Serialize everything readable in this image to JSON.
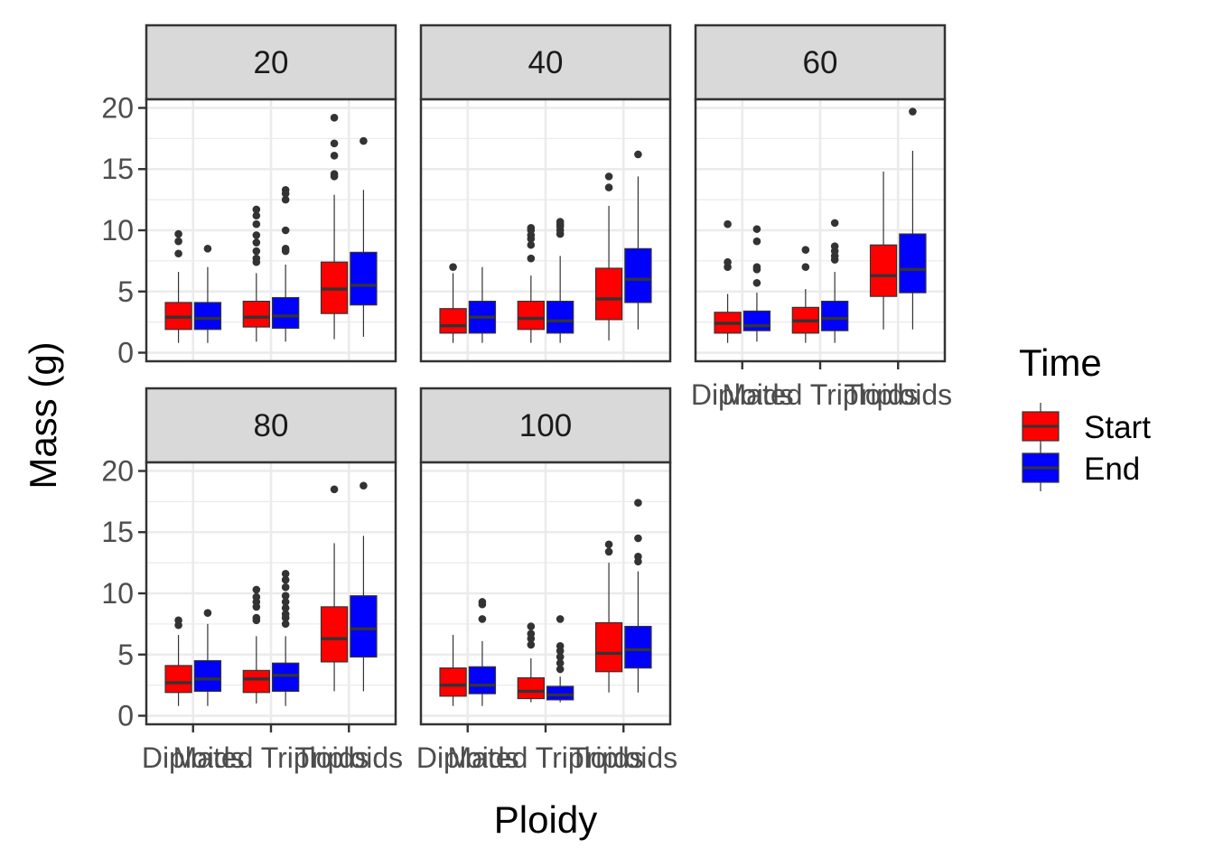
{
  "chart_data": {
    "type": "boxplot",
    "xlabel": "Ploidy",
    "ylabel": "Mass (g)",
    "ylim": [
      -0.7,
      20.7
    ],
    "yticks": [
      0,
      5,
      10,
      15,
      20
    ],
    "categories": [
      "Diploids",
      "Mated Triploids",
      "Triploids"
    ],
    "legend": {
      "title": "Time",
      "position": "right",
      "entries": [
        {
          "name": "Start",
          "color": "#ff0000"
        },
        {
          "name": "End",
          "color": "#0000ff"
        }
      ]
    },
    "panels": [
      {
        "label": "20",
        "boxes": [
          {
            "category": "Diploids",
            "series": "Start",
            "lower": 0.8,
            "q1": 1.9,
            "median": 2.9,
            "q3": 4.1,
            "upper": 6.6,
            "outliers": [
              8.1,
              9.1,
              9.7
            ]
          },
          {
            "category": "Diploids",
            "series": "End",
            "lower": 0.8,
            "q1": 1.9,
            "median": 2.8,
            "q3": 4.1,
            "upper": 7.0,
            "outliers": [
              8.5
            ]
          },
          {
            "category": "Mated Triploids",
            "series": "Start",
            "lower": 0.9,
            "q1": 2.1,
            "median": 2.9,
            "q3": 4.2,
            "upper": 6.5,
            "outliers": [
              7.4,
              7.7,
              8.3,
              9.0,
              9.6,
              10.5,
              11.2,
              11.7
            ]
          },
          {
            "category": "Mated Triploids",
            "series": "End",
            "lower": 0.9,
            "q1": 2.0,
            "median": 3.0,
            "q3": 4.5,
            "upper": 7.2,
            "outliers": [
              8.3,
              8.5,
              10.0,
              12.5,
              13.0,
              13.3
            ]
          },
          {
            "category": "Triploids",
            "series": "Start",
            "lower": 1.1,
            "q1": 3.2,
            "median": 5.2,
            "q3": 7.4,
            "upper": 12.9,
            "outliers": [
              14.4,
              14.6,
              16.1,
              17.1,
              19.2
            ]
          },
          {
            "category": "Triploids",
            "series": "End",
            "lower": 1.3,
            "q1": 3.9,
            "median": 5.5,
            "q3": 8.2,
            "upper": 13.3,
            "outliers": [
              17.3
            ]
          }
        ]
      },
      {
        "label": "40",
        "boxes": [
          {
            "category": "Diploids",
            "series": "Start",
            "lower": 0.8,
            "q1": 1.6,
            "median": 2.2,
            "q3": 3.6,
            "upper": 6.5,
            "outliers": [
              7.0
            ]
          },
          {
            "category": "Diploids",
            "series": "End",
            "lower": 0.8,
            "q1": 1.6,
            "median": 2.9,
            "q3": 4.2,
            "upper": 7.0,
            "outliers": []
          },
          {
            "category": "Mated Triploids",
            "series": "Start",
            "lower": 0.8,
            "q1": 1.9,
            "median": 2.8,
            "q3": 4.2,
            "upper": 6.3,
            "outliers": [
              7.7,
              8.8,
              9.3,
              9.6,
              10.0,
              10.2
            ]
          },
          {
            "category": "Mated Triploids",
            "series": "End",
            "lower": 0.8,
            "q1": 1.6,
            "median": 2.6,
            "q3": 4.2,
            "upper": 7.9,
            "outliers": [
              9.7,
              10.0,
              10.3,
              10.5,
              10.7
            ]
          },
          {
            "category": "Triploids",
            "series": "Start",
            "lower": 1.0,
            "q1": 2.7,
            "median": 4.4,
            "q3": 6.9,
            "upper": 12.0,
            "outliers": [
              13.5,
              14.4
            ]
          },
          {
            "category": "Triploids",
            "series": "End",
            "lower": 1.9,
            "q1": 4.1,
            "median": 6.0,
            "q3": 8.5,
            "upper": 14.4,
            "outliers": [
              16.2
            ]
          }
        ]
      },
      {
        "label": "60",
        "boxes": [
          {
            "category": "Diploids",
            "series": "Start",
            "lower": 0.8,
            "q1": 1.6,
            "median": 2.4,
            "q3": 3.3,
            "upper": 4.8,
            "outliers": [
              7.0,
              7.4,
              10.5
            ]
          },
          {
            "category": "Diploids",
            "series": "End",
            "lower": 0.9,
            "q1": 1.8,
            "median": 2.2,
            "q3": 3.4,
            "upper": 4.9,
            "outliers": [
              5.7,
              6.8,
              7.0,
              9.1,
              10.1
            ]
          },
          {
            "category": "Mated Triploids",
            "series": "Start",
            "lower": 0.8,
            "q1": 1.6,
            "median": 2.6,
            "q3": 3.7,
            "upper": 5.2,
            "outliers": [
              7.0,
              8.4
            ]
          },
          {
            "category": "Mated Triploids",
            "series": "End",
            "lower": 0.8,
            "q1": 1.8,
            "median": 2.8,
            "q3": 4.2,
            "upper": 6.6,
            "outliers": [
              7.6,
              7.9,
              8.3,
              8.7,
              10.6
            ]
          },
          {
            "category": "Triploids",
            "series": "Start",
            "lower": 1.9,
            "q1": 4.6,
            "median": 6.3,
            "q3": 8.8,
            "upper": 14.8,
            "outliers": []
          },
          {
            "category": "Triploids",
            "series": "End",
            "lower": 1.9,
            "q1": 4.9,
            "median": 6.8,
            "q3": 9.7,
            "upper": 16.5,
            "outliers": [
              19.7
            ]
          }
        ]
      },
      {
        "label": "80",
        "boxes": [
          {
            "category": "Diploids",
            "series": "Start",
            "lower": 0.8,
            "q1": 1.9,
            "median": 2.7,
            "q3": 4.1,
            "upper": 6.6,
            "outliers": [
              7.4,
              7.8
            ]
          },
          {
            "category": "Diploids",
            "series": "End",
            "lower": 0.8,
            "q1": 2.0,
            "median": 3.0,
            "q3": 4.5,
            "upper": 7.5,
            "outliers": [
              8.4
            ]
          },
          {
            "category": "Mated Triploids",
            "series": "Start",
            "lower": 1.0,
            "q1": 1.9,
            "median": 3.0,
            "q3": 3.7,
            "upper": 6.5,
            "outliers": [
              7.8,
              8.0,
              8.9,
              9.3,
              9.7,
              10.3
            ]
          },
          {
            "category": "Mated Triploids",
            "series": "End",
            "lower": 0.8,
            "q1": 2.0,
            "median": 3.3,
            "q3": 4.3,
            "upper": 6.5,
            "outliers": [
              7.5,
              8.0,
              8.3,
              8.8,
              9.3,
              9.8,
              10.5,
              11.1,
              11.6
            ]
          },
          {
            "category": "Triploids",
            "series": "Start",
            "lower": 2.0,
            "q1": 4.4,
            "median": 6.3,
            "q3": 8.9,
            "upper": 14.1,
            "outliers": [
              18.5
            ]
          },
          {
            "category": "Triploids",
            "series": "End",
            "lower": 2.0,
            "q1": 4.8,
            "median": 7.1,
            "q3": 9.8,
            "upper": 14.7,
            "outliers": [
              18.8
            ]
          }
        ]
      },
      {
        "label": "100",
        "boxes": [
          {
            "category": "Diploids",
            "series": "Start",
            "lower": 0.8,
            "q1": 1.6,
            "median": 2.5,
            "q3": 3.9,
            "upper": 6.6,
            "outliers": []
          },
          {
            "category": "Diploids",
            "series": "End",
            "lower": 0.8,
            "q1": 1.8,
            "median": 2.5,
            "q3": 4.0,
            "upper": 6.1,
            "outliers": [
              7.9,
              9.1,
              9.3
            ]
          },
          {
            "category": "Mated Triploids",
            "series": "Start",
            "lower": 1.1,
            "q1": 1.4,
            "median": 2.0,
            "q3": 3.1,
            "upper": 4.7,
            "outliers": [
              5.8,
              6.3,
              6.7,
              7.3
            ]
          },
          {
            "category": "Mated Triploids",
            "series": "End",
            "lower": 1.1,
            "q1": 1.3,
            "median": 1.7,
            "q3": 2.4,
            "upper": 3.2,
            "outliers": [
              3.8,
              4.3,
              4.8,
              5.3,
              5.7,
              7.9
            ]
          },
          {
            "category": "Triploids",
            "series": "Start",
            "lower": 1.9,
            "q1": 3.6,
            "median": 5.1,
            "q3": 7.6,
            "upper": 12.5,
            "outliers": [
              13.4,
              14.0
            ]
          },
          {
            "category": "Triploids",
            "series": "End",
            "lower": 1.9,
            "q1": 3.9,
            "median": 5.4,
            "q3": 7.3,
            "upper": 11.8,
            "outliers": [
              12.6,
              13.0,
              14.5,
              17.4
            ]
          }
        ]
      }
    ]
  }
}
